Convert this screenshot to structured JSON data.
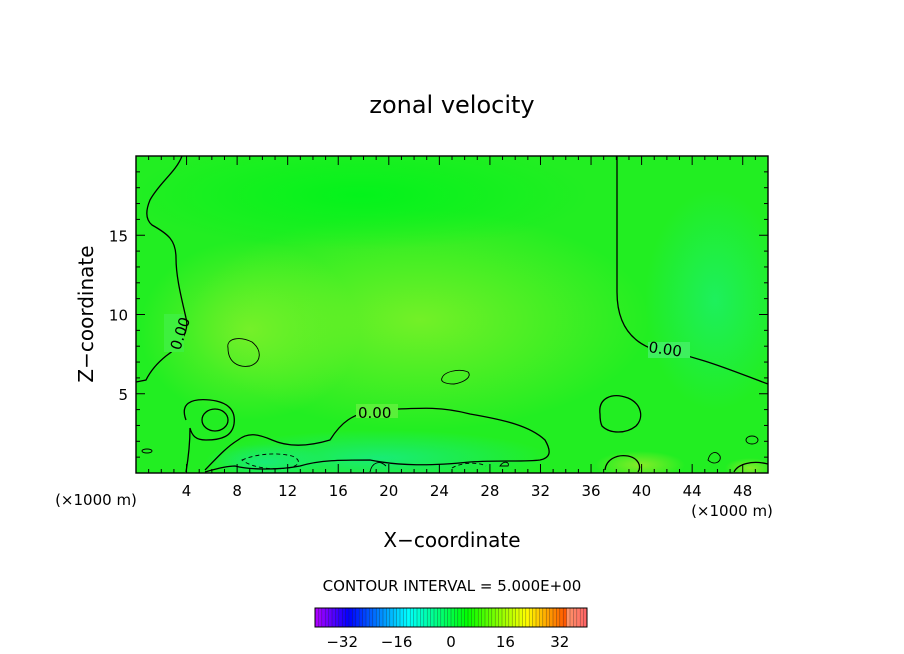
{
  "chart_data": {
    "type": "heatmap",
    "title": "zonal velocity",
    "xlabel": "X−coordinate",
    "ylabel": "Z−coordinate",
    "x_unit_left": "(×1000 m)",
    "x_unit_right": "(×1000 m)",
    "xlim": [
      0,
      50
    ],
    "ylim": [
      0,
      20
    ],
    "x_ticks": [
      4,
      8,
      12,
      16,
      20,
      24,
      28,
      32,
      36,
      40,
      44,
      48
    ],
    "x_tick_labels": [
      "4",
      "8",
      "12",
      "16",
      "20",
      "24",
      "28",
      "32",
      "36",
      "40",
      "44",
      "48"
    ],
    "y_ticks": [
      5,
      10,
      15
    ],
    "y_tick_labels": [
      "5",
      "10",
      "15"
    ],
    "contour_interval_text": "CONTOUR INTERVAL = 5.000E+00",
    "contour_labels": [
      "0.00",
      "0.00",
      "0.00"
    ],
    "colorbar": {
      "min": -40,
      "max": 40,
      "tick_values": [
        -32,
        -16,
        0,
        16,
        32
      ],
      "tick_labels": [
        "−32",
        "−16",
        "0",
        "16",
        "32"
      ]
    },
    "colors": {
      "field_base": "#22ee22",
      "contour": "#000000"
    }
  }
}
